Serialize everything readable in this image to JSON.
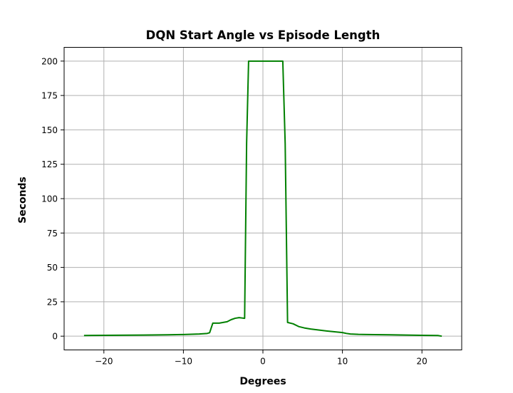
{
  "chart_data": {
    "type": "line",
    "title": "DQN Start Angle vs Episode Length",
    "xlabel": "Degrees",
    "ylabel": "Seconds",
    "xlim": [
      -25,
      25
    ],
    "ylim": [
      -10,
      210
    ],
    "xticks": [
      -20,
      -10,
      0,
      10,
      20
    ],
    "xtick_labels": [
      "−20",
      "−10",
      "0",
      "10",
      "20"
    ],
    "yticks": [
      0,
      25,
      50,
      75,
      100,
      125,
      150,
      175,
      200
    ],
    "ytick_labels": [
      "0",
      "25",
      "50",
      "75",
      "100",
      "125",
      "150",
      "175",
      "200"
    ],
    "grid": true,
    "legend": "none",
    "colors": {
      "series": "#008000"
    },
    "series": [
      {
        "x": [
          -22.5,
          -20,
          -15,
          -12,
          -10,
          -8,
          -7,
          -6.7,
          -6.3,
          -5.5,
          -5,
          -4.5,
          -4,
          -3.5,
          -3,
          -2.6,
          -2.3,
          -2.05,
          -1.8,
          0,
          1,
          2.5,
          2.8,
          3.1,
          3.8,
          4.5,
          5.2,
          6,
          7,
          8,
          9,
          10,
          10.5,
          11,
          12,
          14,
          16,
          18,
          20,
          22,
          22.5
        ],
        "y": [
          0.5,
          0.6,
          0.8,
          1.0,
          1.2,
          1.6,
          2.0,
          2.5,
          9.5,
          9.5,
          10.0,
          10.5,
          12.0,
          13.0,
          13.5,
          13.2,
          13.0,
          140,
          200,
          200,
          200,
          200,
          140,
          10.0,
          9.0,
          7.0,
          6.0,
          5.2,
          4.5,
          3.8,
          3.2,
          2.6,
          2.0,
          1.6,
          1.3,
          1.1,
          1.0,
          0.8,
          0.6,
          0.5,
          0.0
        ]
      }
    ]
  }
}
